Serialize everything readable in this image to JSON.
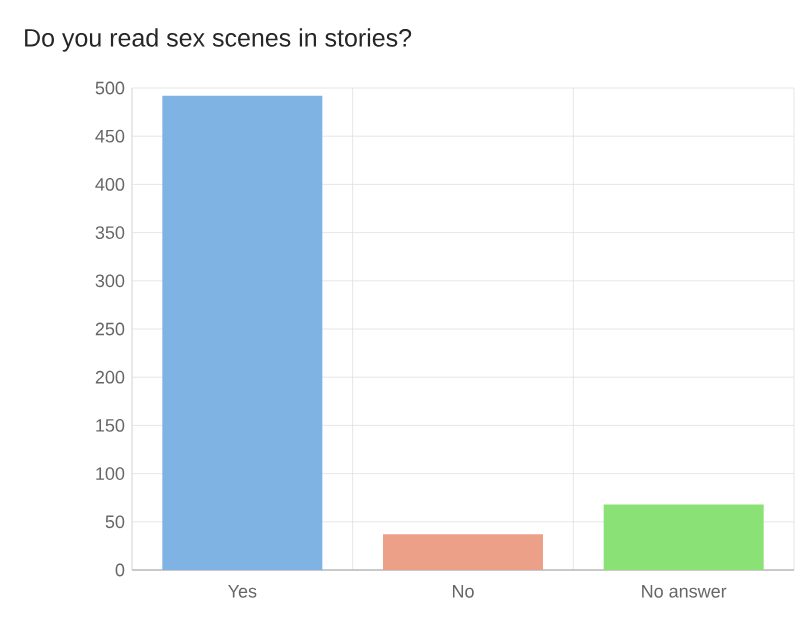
{
  "chart_data": {
    "type": "bar",
    "title": "Do you read sex scenes in stories?",
    "categories": [
      "Yes",
      "No",
      "No answer"
    ],
    "values": [
      492,
      37,
      68
    ],
    "colors": [
      "#7eb3e3",
      "#eca088",
      "#8ae276"
    ],
    "ylim": [
      0,
      500
    ],
    "yticks": [
      0,
      50,
      100,
      150,
      200,
      250,
      300,
      350,
      400,
      450,
      500
    ],
    "grid": true
  }
}
